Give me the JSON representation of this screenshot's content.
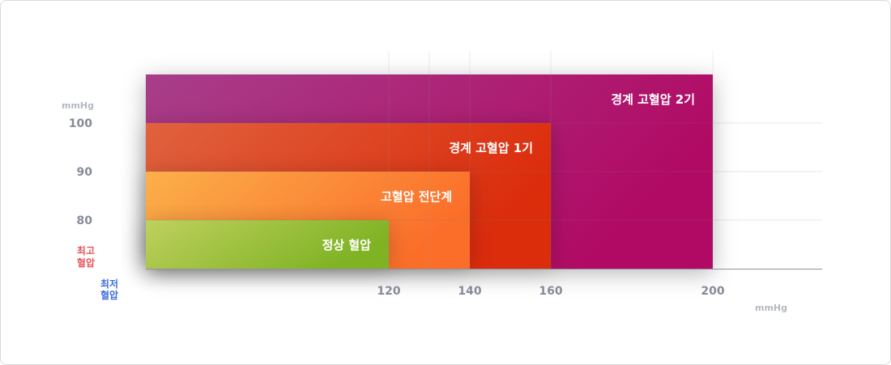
{
  "chart_data": {
    "type": "area",
    "title": "",
    "x_axis": {
      "label": [
        "최저",
        "혈압"
      ],
      "unit": "mmHg",
      "ticks": [
        120,
        140,
        160,
        200
      ],
      "range": [
        60,
        210
      ],
      "label_color": "#3f6fdc"
    },
    "y_axis": {
      "label": [
        "최고",
        "혈압"
      ],
      "unit": "mmHg",
      "ticks": [
        80,
        90,
        100
      ],
      "range": [
        70,
        103
      ],
      "label_color": "#e8545a"
    },
    "grid": true,
    "zones": [
      {
        "name": "경계 고혈압 2기",
        "x_max": 200,
        "y_max": 110,
        "colors": [
          "#a83e8a",
          "#b10a64"
        ]
      },
      {
        "name": "경계 고혈압 1기",
        "x_max": 160,
        "y_max": 100,
        "colors": [
          "#e0623e",
          "#db2c0c"
        ]
      },
      {
        "name": "고혈압 전단계",
        "x_max": 140,
        "y_max": 90,
        "colors": [
          "#fbb04a",
          "#fb6e2a"
        ]
      },
      {
        "name": "정상 혈압",
        "x_max": 120,
        "y_max": 80,
        "colors": [
          "#bfd05e",
          "#7fb324"
        ]
      }
    ]
  }
}
